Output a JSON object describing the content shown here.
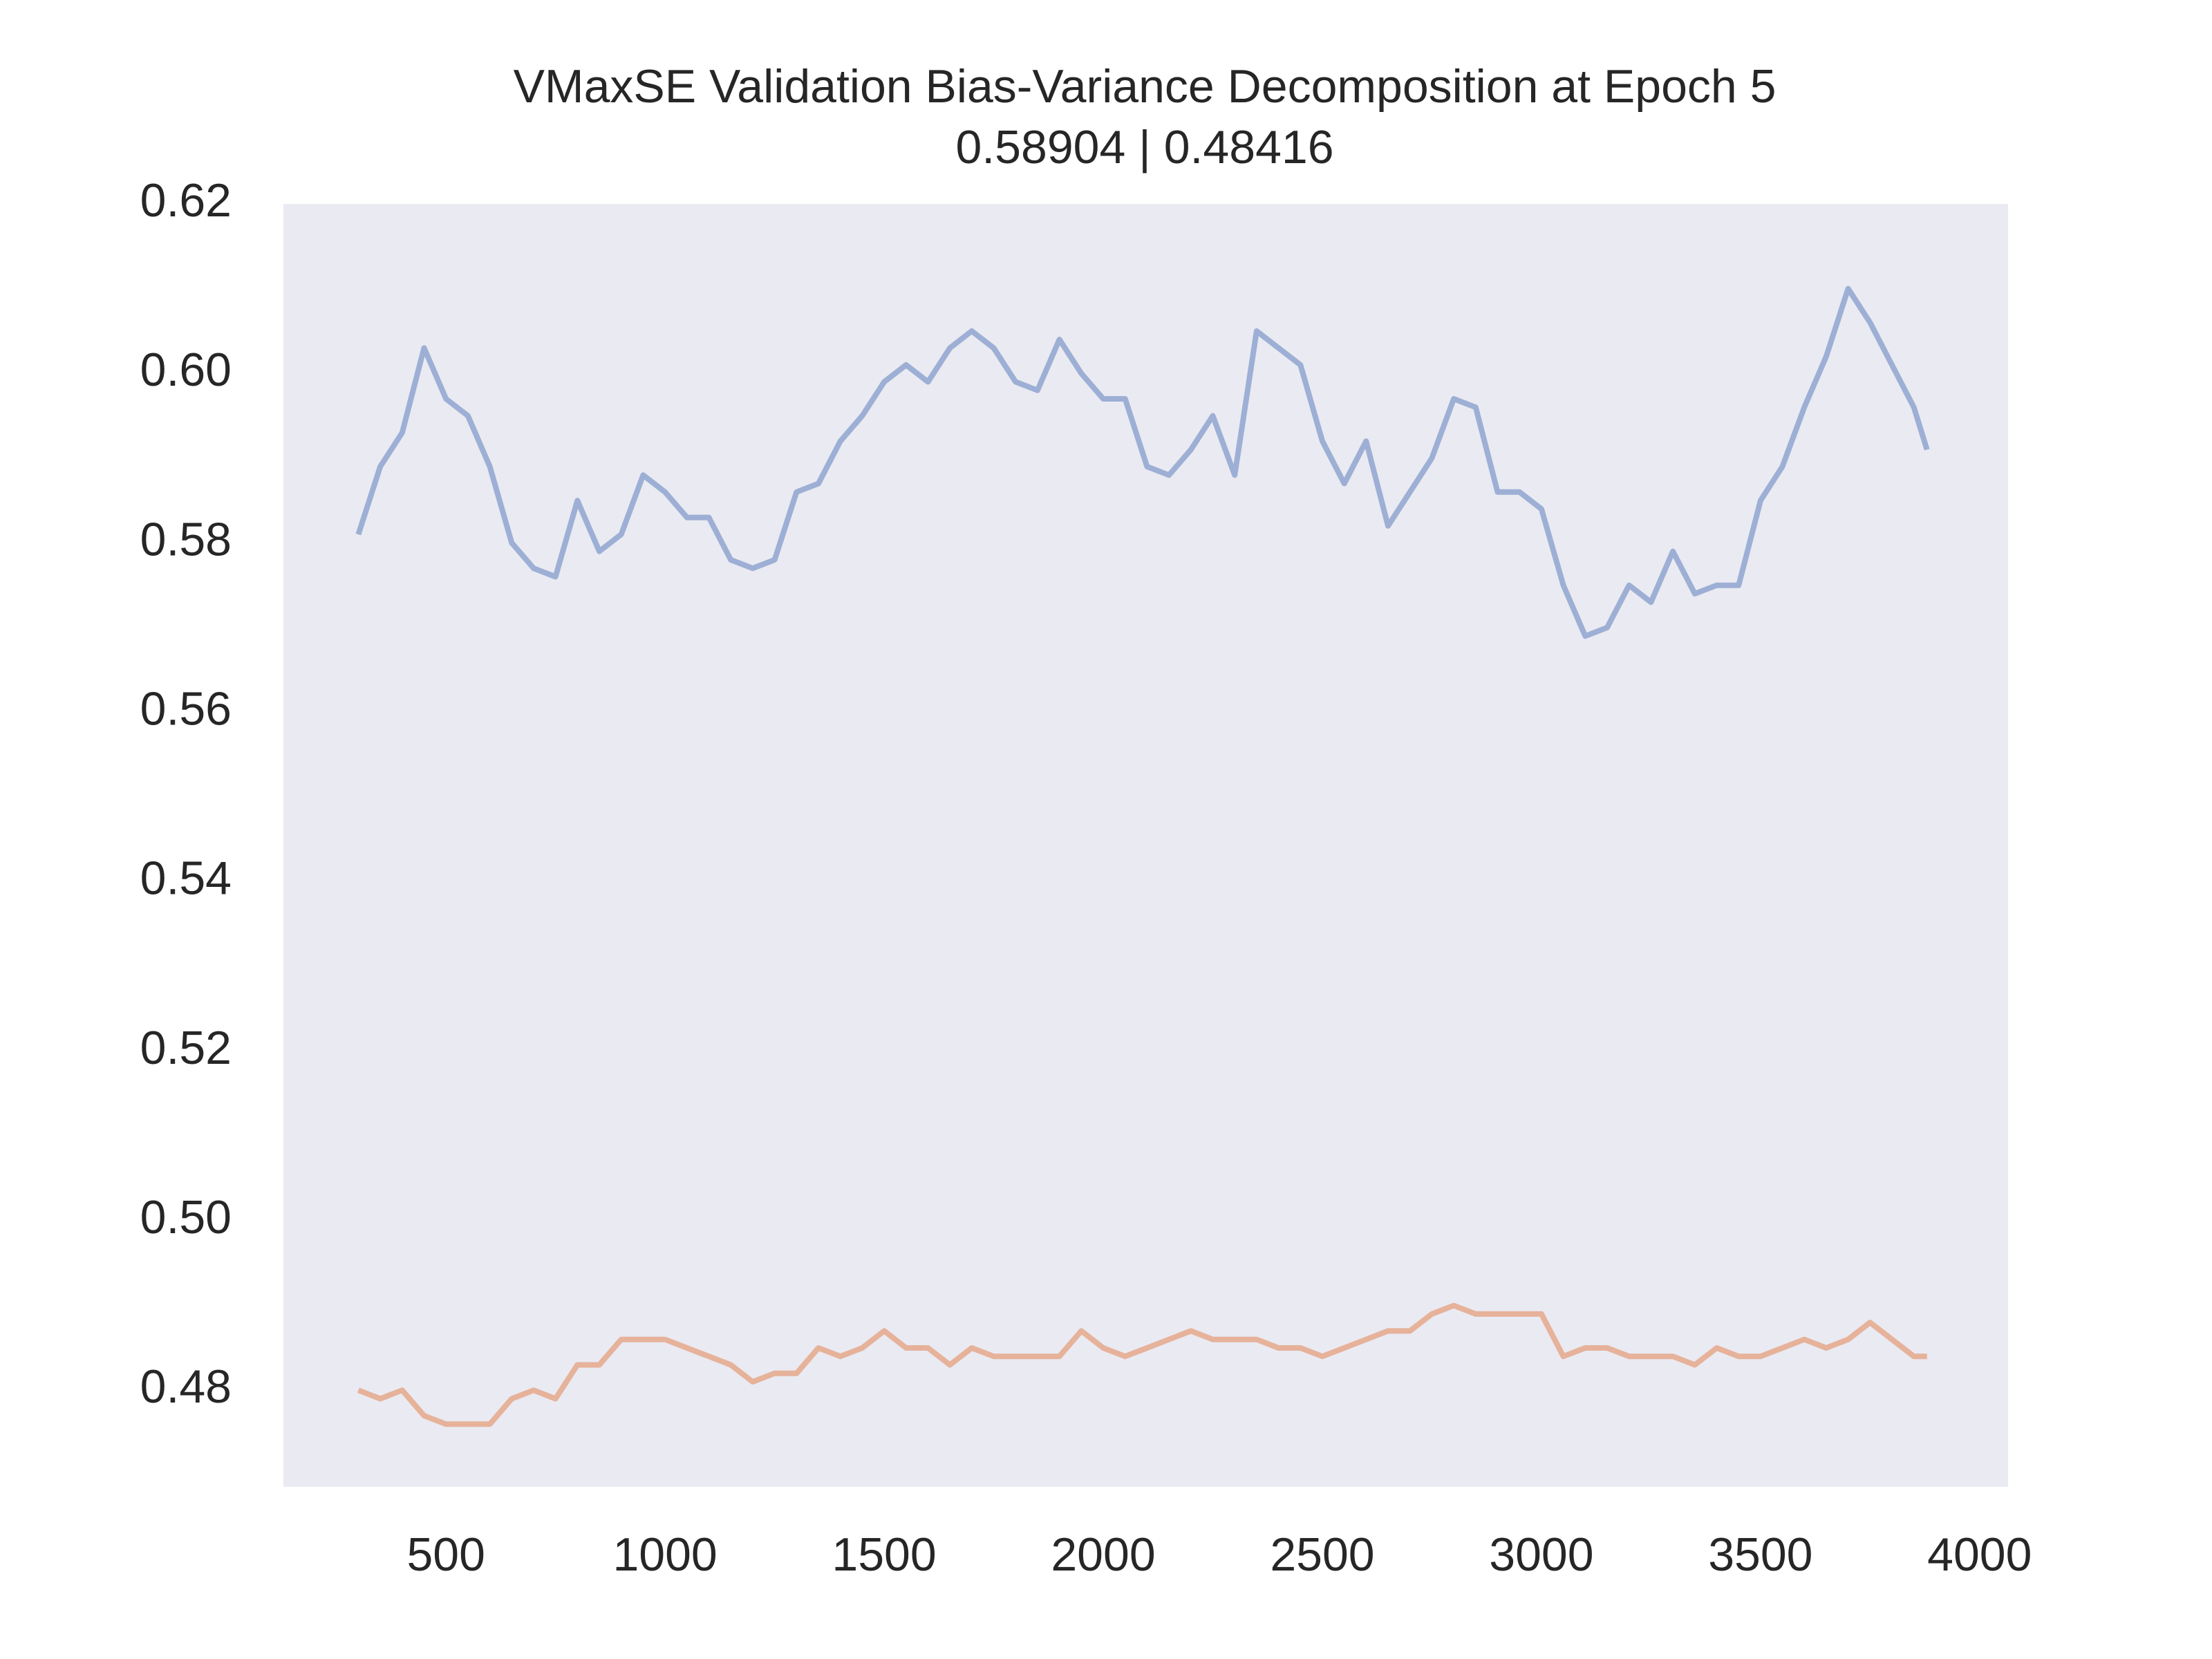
{
  "chart_data": {
    "type": "line",
    "title": "VMaxSE Validation Bias-Variance Decomposition at Epoch 5",
    "subtitle": "0.58904 | 0.48416",
    "x": [
      300,
      350,
      400,
      450,
      500,
      550,
      600,
      650,
      700,
      750,
      800,
      850,
      900,
      950,
      1000,
      1050,
      1100,
      1150,
      1200,
      1250,
      1300,
      1350,
      1400,
      1450,
      1500,
      1550,
      1600,
      1650,
      1700,
      1750,
      1800,
      1850,
      1900,
      1950,
      2000,
      2050,
      2100,
      2150,
      2200,
      2250,
      2300,
      2350,
      2400,
      2450,
      2500,
      2550,
      2600,
      2650,
      2700,
      2750,
      2800,
      2850,
      2900,
      2950,
      3000,
      3050,
      3100,
      3150,
      3200,
      3250,
      3300,
      3350,
      3400,
      3450,
      3500,
      3550,
      3600,
      3650,
      3700,
      3750,
      3800,
      3850,
      3880
    ],
    "series": [
      {
        "color": "#9dafd4",
        "values": [
          0.581,
          0.589,
          0.593,
          0.603,
          0.597,
          0.595,
          0.589,
          0.58,
          0.577,
          0.576,
          0.585,
          0.579,
          0.581,
          0.588,
          0.586,
          0.583,
          0.583,
          0.578,
          0.577,
          0.578,
          0.586,
          0.587,
          0.592,
          0.595,
          0.599,
          0.601,
          0.599,
          0.603,
          0.605,
          0.603,
          0.599,
          0.598,
          0.604,
          0.6,
          0.597,
          0.597,
          0.589,
          0.588,
          0.591,
          0.595,
          0.588,
          0.605,
          0.603,
          0.601,
          0.592,
          0.587,
          0.592,
          0.582,
          0.586,
          0.59,
          0.597,
          0.596,
          0.586,
          0.586,
          0.584,
          0.575,
          0.569,
          0.57,
          0.575,
          0.573,
          0.579,
          0.574,
          0.575,
          0.575,
          0.585,
          0.589,
          0.596,
          0.602,
          0.61,
          0.606,
          0.601,
          0.596,
          0.591
        ]
      },
      {
        "color": "#e6b29a",
        "values": [
          0.48,
          0.479,
          0.48,
          0.477,
          0.476,
          0.476,
          0.476,
          0.479,
          0.48,
          0.479,
          0.483,
          0.483,
          0.486,
          0.486,
          0.486,
          0.485,
          0.484,
          0.483,
          0.481,
          0.482,
          0.482,
          0.485,
          0.484,
          0.485,
          0.487,
          0.485,
          0.485,
          0.483,
          0.485,
          0.484,
          0.484,
          0.484,
          0.484,
          0.487,
          0.485,
          0.484,
          0.485,
          0.486,
          0.487,
          0.486,
          0.486,
          0.486,
          0.485,
          0.485,
          0.484,
          0.485,
          0.486,
          0.487,
          0.487,
          0.489,
          0.49,
          0.489,
          0.489,
          0.489,
          0.489,
          0.484,
          0.485,
          0.485,
          0.484,
          0.484,
          0.484,
          0.483,
          0.485,
          0.484,
          0.484,
          0.485,
          0.486,
          0.485,
          0.486,
          0.488,
          0.486,
          0.484,
          0.484
        ]
      }
    ],
    "xlim": [
      129,
      4065
    ],
    "xticks": [
      500,
      1000,
      1500,
      2000,
      2500,
      3000,
      3500,
      4000
    ],
    "ylim": [
      0.4686,
      0.62
    ],
    "yticks": [
      0.48,
      {
        "value": 0.5,
        "label": "0.50"
      },
      0.52,
      0.54,
      0.56,
      0.58,
      {
        "value": 0.6,
        "label": "0.60"
      },
      0.62
    ],
    "grid": false,
    "background": "#eaeaf2"
  }
}
